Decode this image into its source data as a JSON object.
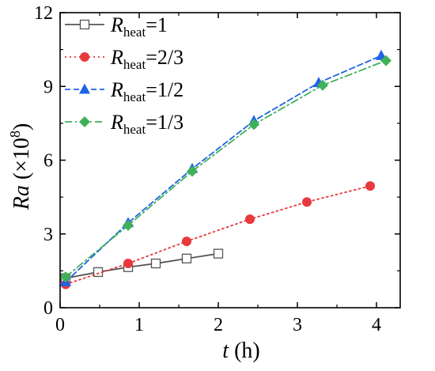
{
  "chart_data": {
    "type": "line",
    "xlabel": {
      "var": "t",
      "unit": " (h)"
    },
    "ylabel": {
      "var": "Ra",
      "unit_prefix": " (×10",
      "unit_exp": "8",
      "unit_suffix": ")"
    },
    "xlim": [
      0,
      4.3
    ],
    "ylim": [
      0,
      12
    ],
    "xticks": [
      0,
      1,
      2,
      3,
      4
    ],
    "yticks": [
      0,
      3,
      6,
      9,
      12
    ],
    "xtick_labels": [
      "0",
      "1",
      "2",
      "3",
      "4"
    ],
    "ytick_labels": [
      "0",
      "3",
      "6",
      "9",
      "12"
    ],
    "legend_position": "top-left",
    "grid": false,
    "series": [
      {
        "name_main": "R",
        "name_sub": "heat",
        "name_val": "=1",
        "color": "#555555",
        "dash": "solid",
        "marker": "square-open",
        "x": [
          0.07,
          0.48,
          0.86,
          1.21,
          1.6,
          2.0
        ],
        "y": [
          1.2,
          1.45,
          1.65,
          1.8,
          2.0,
          2.2
        ]
      },
      {
        "name_main": "R",
        "name_sub": "heat",
        "name_val": "=2/3",
        "color": "#e8393d",
        "dash": "dot",
        "marker": "circle",
        "x": [
          0.07,
          0.86,
          1.6,
          2.4,
          3.12,
          3.92
        ],
        "y": [
          0.95,
          1.8,
          2.7,
          3.6,
          4.3,
          4.95
        ]
      },
      {
        "name_main": "R",
        "name_sub": "heat",
        "name_val": "=1/2",
        "color": "#1f63e6",
        "dash": "dash",
        "marker": "triangle",
        "x": [
          0.07,
          0.86,
          1.67,
          2.45,
          3.27,
          4.06
        ],
        "y": [
          1.05,
          3.45,
          5.65,
          7.6,
          9.15,
          10.25
        ]
      },
      {
        "name_main": "R",
        "name_sub": "heat",
        "name_val": "=1/3",
        "color": "#3fb15a",
        "dash": "dashdot",
        "marker": "diamond",
        "x": [
          0.07,
          0.86,
          1.67,
          2.45,
          3.32,
          4.12
        ],
        "y": [
          1.25,
          3.35,
          5.55,
          7.45,
          9.05,
          10.05
        ]
      }
    ]
  }
}
